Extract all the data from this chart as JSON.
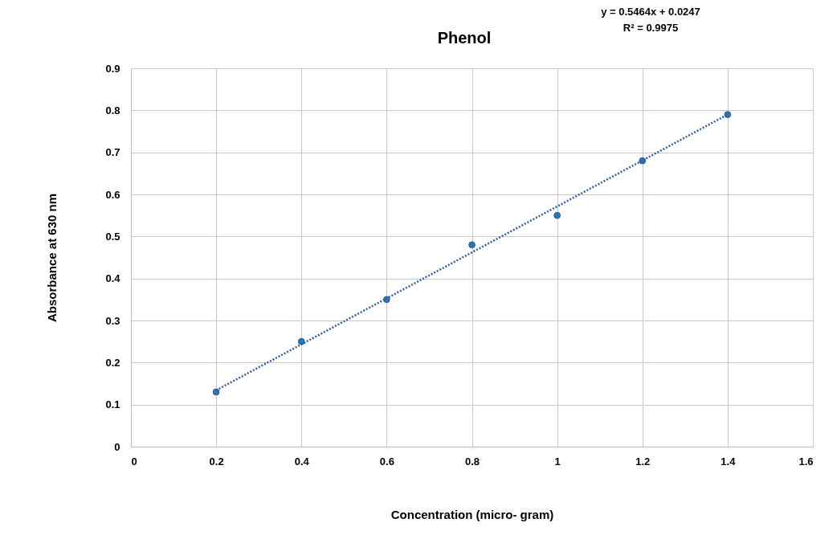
{
  "chart_data": {
    "type": "scatter",
    "title": "Phenol",
    "xlabel": "Concentration (micro- gram)",
    "ylabel": "Absorbance at 630 nm",
    "annotations": [
      "y = 0.5464x + 0.0247",
      "R² = 0.9975"
    ],
    "x": [
      0.2,
      0.4,
      0.6,
      0.8,
      1,
      1.2,
      1.4
    ],
    "series": [
      {
        "color": "#2e75b6",
        "marker": "circle",
        "values": [
          0.13,
          0.25,
          0.35,
          0.48,
          0.55,
          0.68,
          0.79
        ]
      },
      {
        "type": "line",
        "color": "#2f5fa6",
        "line_style": "dotted",
        "marker": "none",
        "x": [
          0.2,
          1.4
        ],
        "values": [
          0.134,
          0.79
        ]
      }
    ],
    "xlim": [
      0,
      1.6
    ],
    "xticks": [
      0,
      0.2,
      0.4,
      0.6,
      0.8,
      1,
      1.2,
      1.4,
      1.6
    ],
    "ylim": [
      0,
      0.9
    ],
    "yticks": [
      0,
      0.1,
      0.2,
      0.3,
      0.4,
      0.5,
      0.6,
      0.7,
      0.8,
      0.9
    ],
    "grid": true
  }
}
